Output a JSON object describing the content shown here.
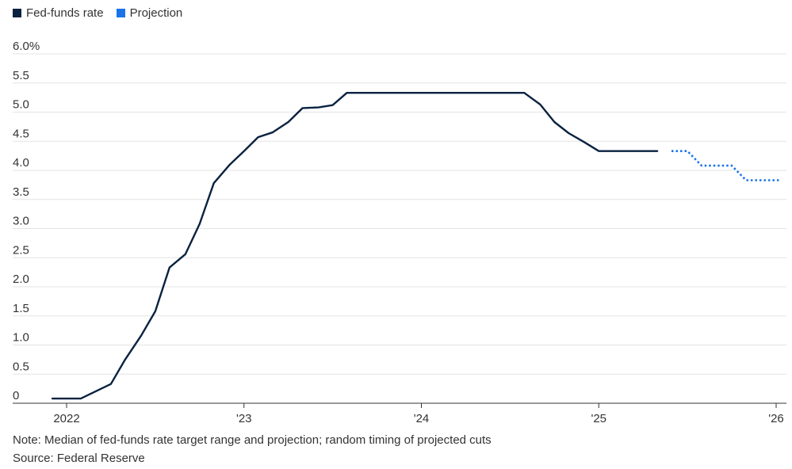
{
  "legend": {
    "fed_funds": "Fed-funds rate",
    "projection": "Projection"
  },
  "colors": {
    "fed_funds": "#0a2240",
    "projection": "#1a73e8"
  },
  "note": "Note: Median of fed-funds rate target range and projection; random timing of projected cuts",
  "source": "Source: Federal Reserve",
  "chart_data": {
    "type": "line",
    "ylim": [
      0,
      6
    ],
    "y_ticks": [
      {
        "value": 0,
        "label": "0"
      },
      {
        "value": 0.5,
        "label": "0.5"
      },
      {
        "value": 1,
        "label": "1.0"
      },
      {
        "value": 1.5,
        "label": "1.5"
      },
      {
        "value": 2,
        "label": "2.0"
      },
      {
        "value": 2.5,
        "label": "2.5"
      },
      {
        "value": 3,
        "label": "3.0"
      },
      {
        "value": 3.5,
        "label": "3.5"
      },
      {
        "value": 4,
        "label": "4.0"
      },
      {
        "value": 4.5,
        "label": "4.5"
      },
      {
        "value": 5,
        "label": "5.0"
      },
      {
        "value": 5.5,
        "label": "5.5"
      },
      {
        "value": 6,
        "label": "6.0%"
      }
    ],
    "xlim": [
      2021.9,
      2026.05
    ],
    "x_ticks": [
      {
        "value": 2022,
        "label": "2022"
      },
      {
        "value": 2023,
        "label": "'23"
      },
      {
        "value": 2024,
        "label": "'24"
      },
      {
        "value": 2025,
        "label": "'25"
      },
      {
        "value": 2026,
        "label": "'26"
      }
    ],
    "grid": true,
    "legend_position": "top-left",
    "series": [
      {
        "name": "Fed-funds rate",
        "style": "solid",
        "points": [
          [
            2021.92,
            0.08
          ],
          [
            2022.08,
            0.08
          ],
          [
            2022.25,
            0.33
          ],
          [
            2022.33,
            0.75
          ],
          [
            2022.42,
            1.16
          ],
          [
            2022.5,
            1.58
          ],
          [
            2022.58,
            2.33
          ],
          [
            2022.67,
            2.56
          ],
          [
            2022.75,
            3.08
          ],
          [
            2022.83,
            3.78
          ],
          [
            2022.92,
            4.1
          ],
          [
            2023.0,
            4.33
          ],
          [
            2023.08,
            4.57
          ],
          [
            2023.16,
            4.65
          ],
          [
            2023.25,
            4.83
          ],
          [
            2023.33,
            5.07
          ],
          [
            2023.42,
            5.08
          ],
          [
            2023.5,
            5.12
          ],
          [
            2023.58,
            5.33
          ],
          [
            2024.58,
            5.33
          ],
          [
            2024.67,
            5.13
          ],
          [
            2024.75,
            4.83
          ],
          [
            2024.83,
            4.64
          ],
          [
            2024.92,
            4.48
          ],
          [
            2025.0,
            4.33
          ],
          [
            2025.33,
            4.33
          ]
        ]
      },
      {
        "name": "Projection",
        "style": "dotted",
        "points": [
          [
            2025.41,
            4.33
          ],
          [
            2025.5,
            4.33
          ],
          [
            2025.58,
            4.08
          ],
          [
            2025.75,
            4.08
          ],
          [
            2025.83,
            3.83
          ],
          [
            2026.02,
            3.83
          ]
        ]
      }
    ]
  }
}
